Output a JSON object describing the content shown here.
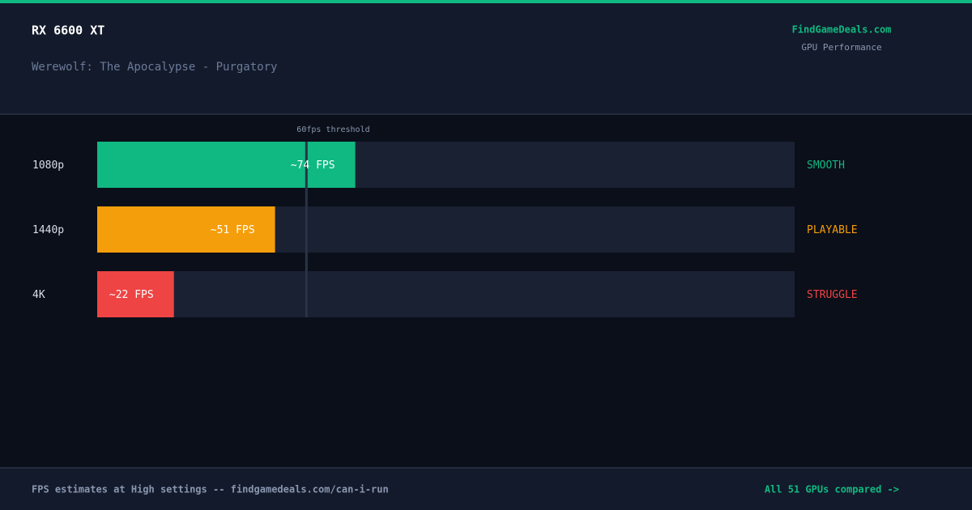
{
  "header": {
    "title": "RX 6600 XT",
    "subtitle": "Werewolf: The Apocalypse - Purgatory",
    "brand": "FindGameDeals.com",
    "brand_subtitle": "GPU Performance"
  },
  "chart_data": {
    "type": "bar",
    "orientation": "horizontal",
    "categories": [
      "1080p",
      "1440p",
      "4K"
    ],
    "values": [
      74,
      51,
      22
    ],
    "value_labels": [
      "~74 FPS",
      "~51 FPS",
      "~22 FPS"
    ],
    "colors": [
      "#10b981",
      "#f59e0b",
      "#ef4444"
    ],
    "ratings": [
      "SMOOTH",
      "PLAYABLE",
      "STRUGGLE"
    ],
    "xlim": [
      0,
      200
    ],
    "threshold": {
      "value": 60,
      "label": "60fps threshold"
    }
  },
  "footer": {
    "note": "FPS estimates at High settings -- findgamedeals.com/can-i-run",
    "link": "All 51 GPUs compared ->"
  }
}
